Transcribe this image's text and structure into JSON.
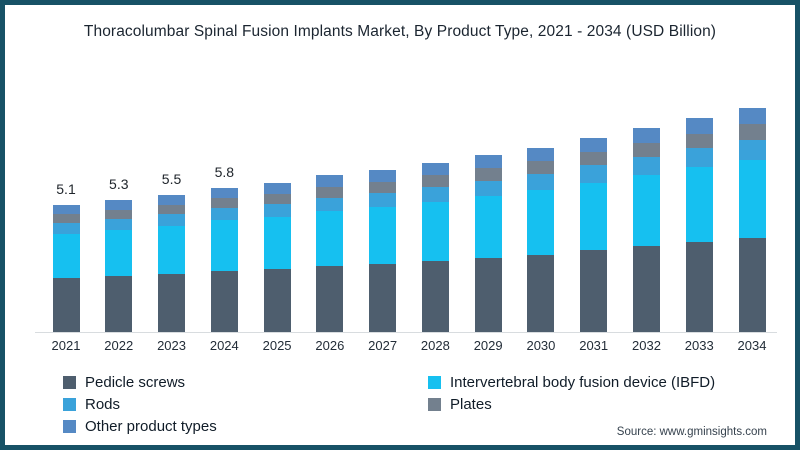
{
  "title": "Thoracolumbar Spinal Fusion Implants Market, By Product Type, 2021 - 2034 (USD Billion)",
  "source": "Source: www.gminsights.com",
  "colors": {
    "panel_border": "#175266",
    "background": "#ffffff",
    "axis_line": "#d8dcdf",
    "text": "#1b2530"
  },
  "chart_data": {
    "type": "bar",
    "stacked": true,
    "grid": false,
    "legend_position": "bottom",
    "ylabel": "",
    "xlabel": "",
    "ylim": [
      0,
      9.5
    ],
    "categories": [
      "2021",
      "2022",
      "2023",
      "2024",
      "2025",
      "2026",
      "2027",
      "2028",
      "2029",
      "2030",
      "2031",
      "2032",
      "2033",
      "2034"
    ],
    "series": [
      {
        "name": "Pedicle screws",
        "color": "#4e5e6e",
        "values": [
          2.15,
          2.23,
          2.31,
          2.44,
          2.52,
          2.65,
          2.73,
          2.86,
          2.98,
          3.11,
          3.28,
          3.45,
          3.62,
          3.79
        ]
      },
      {
        "name": "Intervertebral body fusion device (IBFD)",
        "color": "#16c0f0",
        "values": [
          1.8,
          1.87,
          1.94,
          2.04,
          2.11,
          2.21,
          2.28,
          2.38,
          2.48,
          2.58,
          2.72,
          2.85,
          2.99,
          3.13
        ]
      },
      {
        "name": "Rods",
        "color": "#3aa2da",
        "values": [
          0.43,
          0.45,
          0.47,
          0.49,
          0.51,
          0.54,
          0.56,
          0.59,
          0.62,
          0.65,
          0.69,
          0.73,
          0.77,
          0.81
        ]
      },
      {
        "name": "Plates",
        "color": "#73808e",
        "values": [
          0.36,
          0.37,
          0.39,
          0.41,
          0.42,
          0.44,
          0.45,
          0.47,
          0.49,
          0.51,
          0.53,
          0.56,
          0.58,
          0.61
        ]
      },
      {
        "name": "Other product types",
        "color": "#5589c4",
        "values": [
          0.36,
          0.38,
          0.39,
          0.42,
          0.44,
          0.46,
          0.48,
          0.5,
          0.53,
          0.55,
          0.58,
          0.61,
          0.64,
          0.66
        ]
      }
    ],
    "totals": [
      5.1,
      5.3,
      5.5,
      5.8,
      6.0,
      6.3,
      6.5,
      6.8,
      7.1,
      7.4,
      7.8,
      8.2,
      8.6,
      9.0
    ],
    "data_labels": [
      "5.1",
      "5.3",
      "5.5",
      "5.8",
      "",
      "",
      "",
      "",
      "",
      "",
      "",
      "",
      "",
      ""
    ]
  }
}
